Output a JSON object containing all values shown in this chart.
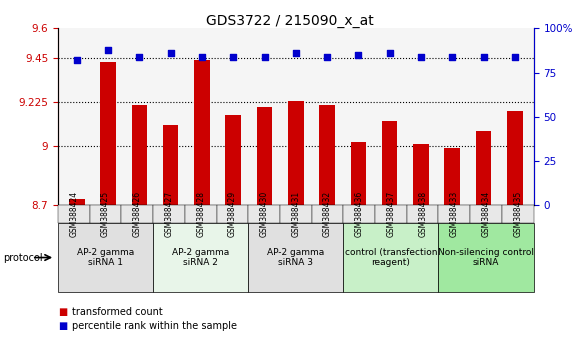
{
  "title": "GDS3722 / 215090_x_at",
  "categories": [
    "GSM388424",
    "GSM388425",
    "GSM388426",
    "GSM388427",
    "GSM388428",
    "GSM388429",
    "GSM388430",
    "GSM388431",
    "GSM388432",
    "GSM388436",
    "GSM388437",
    "GSM388438",
    "GSM388433",
    "GSM388434",
    "GSM388435"
  ],
  "bar_values": [
    8.73,
    9.43,
    9.21,
    9.11,
    9.44,
    9.16,
    9.2,
    9.23,
    9.21,
    9.02,
    9.13,
    9.01,
    8.99,
    9.08,
    9.18
  ],
  "percentile_values": [
    82,
    88,
    84,
    86,
    84,
    84,
    84,
    86,
    84,
    85,
    86,
    84,
    84,
    84,
    84
  ],
  "bar_color": "#cc0000",
  "dot_color": "#0000cc",
  "ylim_left": [
    8.7,
    9.6
  ],
  "ylim_right": [
    0,
    100
  ],
  "yticks_left": [
    8.7,
    9.0,
    9.225,
    9.45,
    9.6
  ],
  "ytick_labels_left": [
    "8.7",
    "9",
    "9.225",
    "9.45",
    "9.6"
  ],
  "yticks_right": [
    0,
    25,
    50,
    75,
    100
  ],
  "ytick_labels_right": [
    "0",
    "25",
    "50",
    "75",
    "100%"
  ],
  "hlines": [
    9.0,
    9.225,
    9.45
  ],
  "groups": [
    {
      "label": "AP-2 gamma\nsiRNA 1",
      "start": 0,
      "end": 3,
      "color": "#e0e0e0"
    },
    {
      "label": "AP-2 gamma\nsiRNA 2",
      "start": 3,
      "end": 6,
      "color": "#e8f5e9"
    },
    {
      "label": "AP-2 gamma\nsiRNA 3",
      "start": 6,
      "end": 9,
      "color": "#e0e0e0"
    },
    {
      "label": "control (transfection\nreagent)",
      "start": 9,
      "end": 12,
      "color": "#c8f0c8"
    },
    {
      "label": "Non-silencing control\nsiRNA",
      "start": 12,
      "end": 15,
      "color": "#a0e8a0"
    }
  ],
  "protocol_label": "protocol",
  "legend_bar_label": "transformed count",
  "legend_dot_label": "percentile rank within the sample",
  "axis_color_left": "#cc0000",
  "axis_color_right": "#0000cc",
  "bar_width": 0.5,
  "plot_bg_color": "#f5f5f5"
}
